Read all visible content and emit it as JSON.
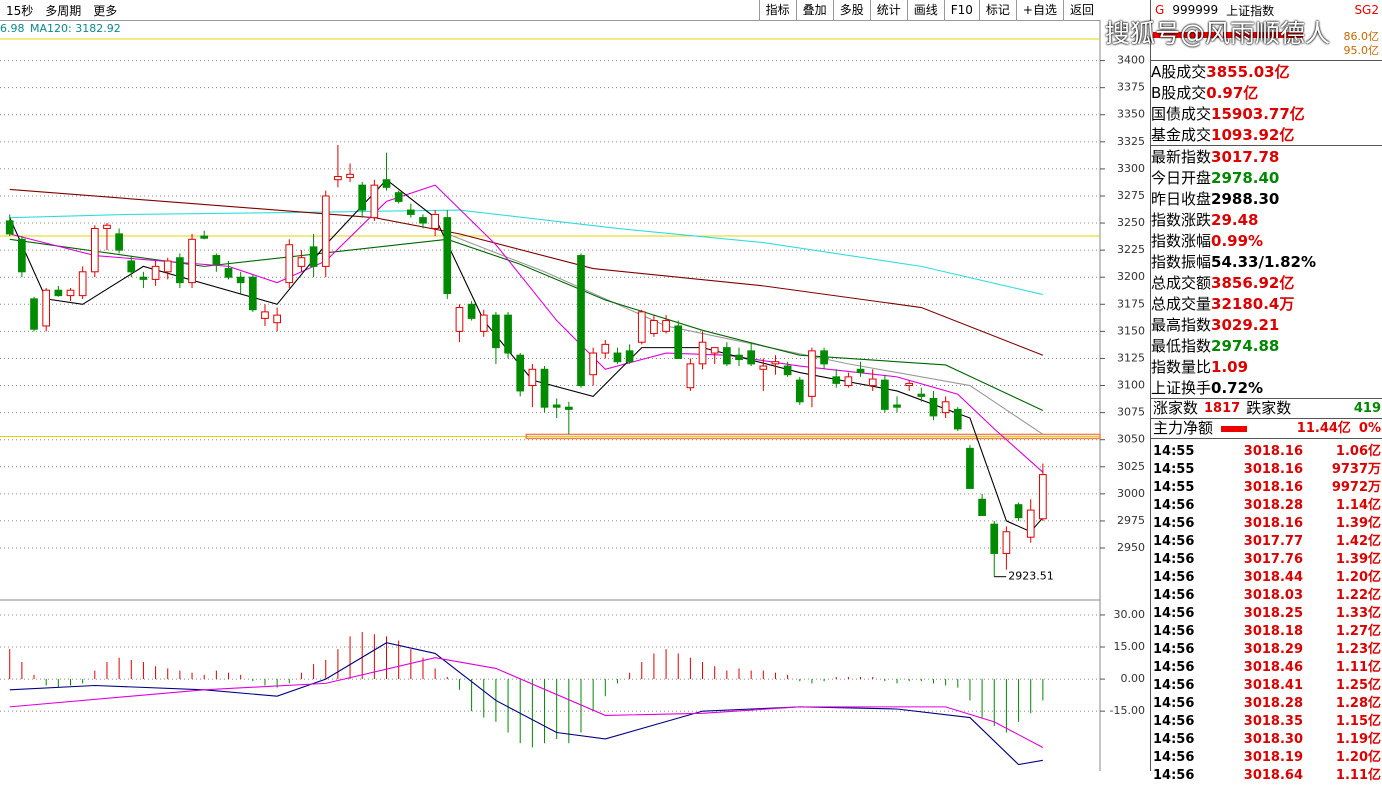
{
  "toolbar": {
    "left": [
      "15秒",
      "多周期",
      "更多"
    ],
    "buttons": [
      "指标",
      "叠加",
      "多股",
      "统计",
      "画线",
      "F10",
      "标记",
      "+自选",
      "返回"
    ]
  },
  "watermark": "搜狐号@风雨顺德人",
  "chart_data": [
    {
      "type": "candlestick",
      "legend": [
        "6.98",
        "MA120: 3182.92"
      ],
      "xlim": [
        -0.8,
        89.7
      ],
      "ylim": [
        2902,
        3419
      ],
      "yticks": [
        2950,
        2975,
        3000,
        3025,
        3050,
        3075,
        3100,
        3125,
        3150,
        3175,
        3200,
        3225,
        3250,
        3275,
        3300,
        3325,
        3350,
        3375,
        3400
      ],
      "up_color": "#e00000",
      "down_color": "#008a00",
      "ohlc": [
        [
          3252,
          3258,
          3238,
          3240
        ],
        [
          3235,
          3238,
          3200,
          3205
        ],
        [
          3180,
          3182,
          3150,
          3152
        ],
        [
          3155,
          3190,
          3150,
          3188
        ],
        [
          3188,
          3192,
          3182,
          3183
        ],
        [
          3183,
          3190,
          3178,
          3188
        ],
        [
          3183,
          3210,
          3180,
          3205
        ],
        [
          3205,
          3248,
          3200,
          3245
        ],
        [
          3245,
          3250,
          3225,
          3248
        ],
        [
          3240,
          3245,
          3222,
          3225
        ],
        [
          3215,
          3220,
          3200,
          3205
        ],
        [
          3200,
          3205,
          3190,
          3198
        ],
        [
          3198,
          3215,
          3192,
          3210
        ],
        [
          3205,
          3218,
          3198,
          3215
        ],
        [
          3218,
          3222,
          3190,
          3195
        ],
        [
          3195,
          3240,
          3190,
          3235
        ],
        [
          3238,
          3243,
          3235,
          3236
        ],
        [
          3220,
          3222,
          3205,
          3212
        ],
        [
          3208,
          3215,
          3198,
          3200
        ],
        [
          3200,
          3205,
          3185,
          3195
        ],
        [
          3200,
          3202,
          3168,
          3170
        ],
        [
          3162,
          3175,
          3155,
          3168
        ],
        [
          3158,
          3172,
          3150,
          3165
        ],
        [
          3195,
          3235,
          3190,
          3230
        ],
        [
          3210,
          3225,
          3205,
          3218
        ],
        [
          3228,
          3240,
          3200,
          3210
        ],
        [
          3210,
          3280,
          3200,
          3275
        ],
        [
          3290,
          3322,
          3283,
          3293
        ],
        [
          3292,
          3305,
          3288,
          3295
        ],
        [
          3285,
          3288,
          3255,
          3262
        ],
        [
          3255,
          3290,
          3252,
          3285
        ],
        [
          3290,
          3315,
          3280,
          3283
        ],
        [
          3278,
          3280,
          3268,
          3270
        ],
        [
          3262,
          3268,
          3255,
          3258
        ],
        [
          3255,
          3258,
          3245,
          3250
        ],
        [
          3245,
          3262,
          3238,
          3258
        ],
        [
          3255,
          3262,
          3180,
          3185
        ],
        [
          3150,
          3175,
          3140,
          3172
        ],
        [
          3175,
          3178,
          3160,
          3162
        ],
        [
          3150,
          3170,
          3145,
          3165
        ],
        [
          3165,
          3168,
          3120,
          3135
        ],
        [
          3165,
          3168,
          3125,
          3130
        ],
        [
          3128,
          3130,
          3090,
          3095
        ],
        [
          3100,
          3120,
          3080,
          3115
        ],
        [
          3115,
          3118,
          3075,
          3080
        ],
        [
          3082,
          3088,
          3070,
          3080
        ],
        [
          3080,
          3085,
          3055,
          3078
        ],
        [
          3220,
          3222,
          3098,
          3100
        ],
        [
          3110,
          3135,
          3100,
          3130
        ],
        [
          3130,
          3142,
          3125,
          3138
        ],
        [
          3130,
          3135,
          3120,
          3122
        ],
        [
          3132,
          3138,
          3120,
          3122
        ],
        [
          3140,
          3170,
          3138,
          3168
        ],
        [
          3148,
          3165,
          3145,
          3160
        ],
        [
          3150,
          3165,
          3148,
          3160
        ],
        [
          3155,
          3160,
          3125,
          3125
        ],
        [
          3098,
          3125,
          3095,
          3120
        ],
        [
          3120,
          3150,
          3115,
          3140
        ],
        [
          3130,
          3135,
          3120,
          3135
        ],
        [
          3135,
          3140,
          3118,
          3120
        ],
        [
          3128,
          3135,
          3118,
          3124
        ],
        [
          3132,
          3140,
          3118,
          3120
        ],
        [
          3115,
          3125,
          3095,
          3118
        ],
        [
          3120,
          3128,
          3110,
          3122
        ],
        [
          3118,
          3122,
          3108,
          3110
        ],
        [
          3105,
          3108,
          3082,
          3085
        ],
        [
          3090,
          3135,
          3080,
          3132
        ],
        [
          3132,
          3135,
          3115,
          3120
        ],
        [
          3108,
          3115,
          3098,
          3102
        ],
        [
          3100,
          3112,
          3098,
          3108
        ],
        [
          3115,
          3122,
          3108,
          3112
        ],
        [
          3100,
          3115,
          3095,
          3106
        ],
        [
          3105,
          3110,
          3075,
          3078
        ],
        [
          3082,
          3090,
          3075,
          3080
        ],
        [
          3100,
          3105,
          3095,
          3102
        ],
        [
          3092,
          3098,
          3085,
          3090
        ],
        [
          3088,
          3095,
          3068,
          3072
        ],
        [
          3075,
          3090,
          3070,
          3085
        ],
        [
          3078,
          3080,
          3058,
          3060
        ],
        [
          3042,
          3045,
          3005,
          3005
        ],
        [
          2995,
          3000,
          2980,
          2980
        ],
        [
          2972,
          2975,
          2923.51,
          2945
        ],
        [
          2945,
          2970,
          2930,
          2965
        ],
        [
          2990,
          2992,
          2975,
          2978
        ],
        [
          2960,
          2995,
          2955,
          2985
        ],
        [
          2977,
          3028,
          2975,
          3017.78
        ]
      ],
      "lines": [
        {
          "color": "#33dddd",
          "x": [
            0,
            10,
            25,
            37,
            50,
            62,
            75,
            85
          ],
          "values": [
            3255,
            3258,
            3260,
            3262,
            3245,
            3232,
            3210,
            3184
          ]
        },
        {
          "color": "#800000",
          "x": [
            0,
            15,
            30,
            37,
            48,
            62,
            75,
            85
          ],
          "values": [
            3281,
            3268,
            3255,
            3240,
            3208,
            3192,
            3172,
            3128
          ]
        },
        {
          "color": "#999999",
          "x": [
            36,
            44,
            54,
            69,
            79,
            85
          ],
          "values": [
            3240,
            3205,
            3155,
            3120,
            3100,
            3055
          ]
        },
        {
          "color": "#006600",
          "x": [
            0,
            16,
            32,
            36,
            42,
            49,
            57,
            65,
            77,
            85
          ],
          "values": [
            3235,
            3210,
            3230,
            3235,
            3212,
            3179,
            3151,
            3128,
            3119,
            3077
          ]
        },
        {
          "color": "#e000e0",
          "x": [
            0,
            7,
            18,
            22,
            26,
            31,
            35,
            40,
            45,
            49,
            54,
            59,
            65,
            73,
            78,
            81,
            85
          ],
          "values": [
            3240,
            3220,
            3210,
            3195,
            3215,
            3270,
            3285,
            3230,
            3160,
            3115,
            3130,
            3128,
            3118,
            3108,
            3092,
            3060,
            3020
          ]
        },
        {
          "color": "#000000",
          "x": [
            0,
            3,
            6,
            11,
            22,
            26,
            31,
            35,
            39,
            43,
            48,
            52,
            57,
            65,
            73,
            79,
            82,
            84,
            85
          ],
          "values": [
            3255,
            3180,
            3175,
            3210,
            3175,
            3230,
            3290,
            3255,
            3160,
            3105,
            3090,
            3135,
            3135,
            3112,
            3095,
            3070,
            2975,
            2965,
            2978
          ]
        }
      ],
      "hlines": [
        {
          "value": 3238,
          "color": "#e8d000"
        },
        {
          "value": 3053,
          "color": "#e8d000"
        }
      ],
      "support": {
        "value": 3053,
        "from": 42.5,
        "color": "#f08050"
      },
      "annotation": {
        "index": 81,
        "value": 2923.51,
        "text": "2923.51"
      }
    },
    {
      "type": "macd",
      "xlim": [
        -0.8,
        89.7
      ],
      "ylim": [
        -43,
        37
      ],
      "yticks": [
        {
          "value": 30,
          "label": "30.00"
        },
        {
          "value": 15,
          "label": "15.00"
        },
        {
          "value": 0,
          "label": "0.00"
        },
        {
          "value": -15,
          "label": "-15.00"
        }
      ],
      "up_color": "#e00000",
      "down_color": "#008a00",
      "values": [
        14,
        8,
        2,
        -3,
        -4,
        -3,
        -2,
        4,
        8,
        10,
        9,
        8,
        6,
        5,
        4,
        3,
        2,
        4,
        3,
        2,
        -1,
        -3,
        -4,
        -2,
        3,
        7,
        9,
        14,
        20,
        22,
        21,
        20,
        18,
        14,
        10,
        5,
        1,
        -5,
        -15,
        -18,
        -20,
        -25,
        -30,
        -32,
        -30,
        -28,
        -30,
        -25,
        -15,
        -8,
        -2,
        3,
        8,
        12,
        14,
        12,
        10,
        8,
        6,
        4,
        5,
        4,
        4,
        3,
        2,
        -1,
        -2,
        -1,
        1,
        1,
        1,
        1,
        -1,
        -2,
        -1,
        -1,
        -2,
        -3,
        -4,
        -10,
        -18,
        -22,
        -25,
        -20,
        -16,
        -10
      ],
      "lines": [
        {
          "color": "#000080",
          "x": [
            0,
            7,
            16,
            22,
            26,
            31,
            35,
            40,
            45,
            49,
            57,
            65,
            73,
            79,
            83,
            85
          ],
          "values": [
            -5,
            -3,
            -5,
            -8,
            0,
            17,
            12,
            -10,
            -25,
            -28,
            -15,
            -13,
            -14,
            -18,
            -40,
            -38
          ]
        },
        {
          "color": "#e000e0",
          "x": [
            0,
            16,
            26,
            35,
            40,
            49,
            57,
            65,
            77,
            81,
            85
          ],
          "values": [
            -13,
            -5,
            -2,
            10,
            5,
            -17,
            -16,
            -13,
            -13,
            -20,
            -32
          ]
        }
      ]
    }
  ],
  "panel": {
    "header": [
      "G",
      "999999",
      "上证指数",
      "SG2"
    ],
    "bars": [
      "86.0亿",
      "95.0亿"
    ],
    "rows": [
      {
        "label": "A股成交",
        "value": "3855.03亿",
        "color": "#d00"
      },
      {
        "label": "B股成交",
        "value": "0.97亿",
        "color": "#d00"
      },
      {
        "label": "国债成交",
        "value": "15903.77亿",
        "color": "#d00"
      },
      {
        "label": "基金成交",
        "value": "1093.92亿",
        "color": "#d00"
      },
      {
        "label": "最新指数",
        "value": "3017.78",
        "color": "#d00"
      },
      {
        "label": "今日开盘",
        "value": "2978.40",
        "color": "#080"
      },
      {
        "label": "昨日收盘",
        "value": "2988.30",
        "color": "#000"
      },
      {
        "label": "指数涨跌",
        "value": "29.48",
        "color": "#d00"
      },
      {
        "label": "指数涨幅",
        "value": "0.99%",
        "color": "#d00"
      },
      {
        "label": "指数振幅",
        "value": "54.33/1.82%",
        "color": "#000"
      },
      {
        "label": "总成交额",
        "value": "3856.92亿",
        "color": "#d00"
      },
      {
        "label": "总成交量",
        "value": "32180.4万",
        "color": "#d00"
      },
      {
        "label": "最高指数",
        "value": "3029.21",
        "color": "#d00"
      },
      {
        "label": "最低指数",
        "value": "2974.88",
        "color": "#080"
      },
      {
        "label": "指数量比",
        "value": "1.09",
        "color": "#d00"
      },
      {
        "label": "上证换手",
        "value": "0.72%",
        "color": "#000"
      }
    ],
    "breadth": [
      "涨家数",
      "1817",
      "跌家数",
      "419"
    ],
    "flow": [
      "主力净额",
      "11.44亿",
      "0%"
    ],
    "ticks": [
      [
        "14:55",
        "3018.16",
        "1.06亿"
      ],
      [
        "14:55",
        "3018.16",
        "9737万"
      ],
      [
        "14:55",
        "3018.16",
        "9972万"
      ],
      [
        "14:56",
        "3018.28",
        "1.14亿"
      ],
      [
        "14:56",
        "3018.16",
        "1.39亿"
      ],
      [
        "14:56",
        "3017.77",
        "1.42亿"
      ],
      [
        "14:56",
        "3017.76",
        "1.39亿"
      ],
      [
        "14:56",
        "3018.44",
        "1.20亿"
      ],
      [
        "14:56",
        "3018.03",
        "1.22亿"
      ],
      [
        "14:56",
        "3018.25",
        "1.33亿"
      ],
      [
        "14:56",
        "3018.18",
        "1.27亿"
      ],
      [
        "14:56",
        "3018.29",
        "1.23亿"
      ],
      [
        "14:56",
        "3018.46",
        "1.11亿"
      ],
      [
        "14:56",
        "3018.41",
        "1.25亿"
      ],
      [
        "14:56",
        "3018.28",
        "1.28亿"
      ],
      [
        "14:56",
        "3018.35",
        "1.15亿"
      ],
      [
        "14:56",
        "3018.30",
        "1.19亿"
      ],
      [
        "14:56",
        "3018.19",
        "1.20亿"
      ],
      [
        "14:56",
        "3018.64",
        "1.11亿"
      ]
    ]
  }
}
